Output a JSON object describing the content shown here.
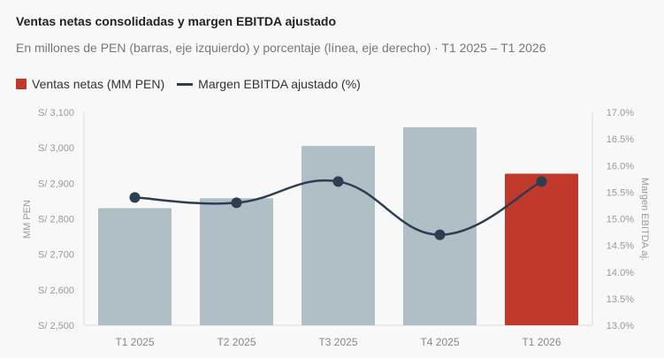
{
  "chart_data": {
    "type": "bar",
    "title": "Ventas netas consolidadas y margen EBITDA ajustado",
    "subtitle": "En millones de PEN (barras, eje izquierdo) y porcentaje (línea, eje derecho) · T1 2025 – T1 2026",
    "categories": [
      "T1 2025",
      "T2 2025",
      "T3 2025",
      "T4 2025",
      "T1 2026"
    ],
    "series": [
      {
        "name": "Ventas netas (MM PEN)",
        "type": "bar",
        "axis": "left",
        "values": [
          2830,
          2858,
          3005,
          3058,
          2927
        ],
        "colors": [
          "#b0bec5",
          "#b0bec5",
          "#b0bec5",
          "#b0bec5",
          "#c0392b"
        ]
      },
      {
        "name": "Margen EBITDA ajustado (%)",
        "type": "line",
        "axis": "right",
        "values": [
          15.4,
          15.3,
          15.7,
          14.7,
          15.7
        ],
        "color": "#2c3e50"
      }
    ],
    "ylabel": "MM PEN",
    "ylabel_right": "Margen EBITDA aj.",
    "ylim": [
      2500,
      3100
    ],
    "ylim_right": [
      13.0,
      17.0
    ],
    "yticks": [
      "S/ 2,500",
      "S/ 2,600",
      "S/ 2,700",
      "S/ 2,800",
      "S/ 2,900",
      "S/ 3,000",
      "S/ 3,100"
    ],
    "yticks_right": [
      "13.0%",
      "13.5%",
      "14.0%",
      "14.5%",
      "15.0%",
      "15.5%",
      "16.0%",
      "16.5%",
      "17.0%"
    ],
    "legend_position": "top-left",
    "grid": false
  }
}
